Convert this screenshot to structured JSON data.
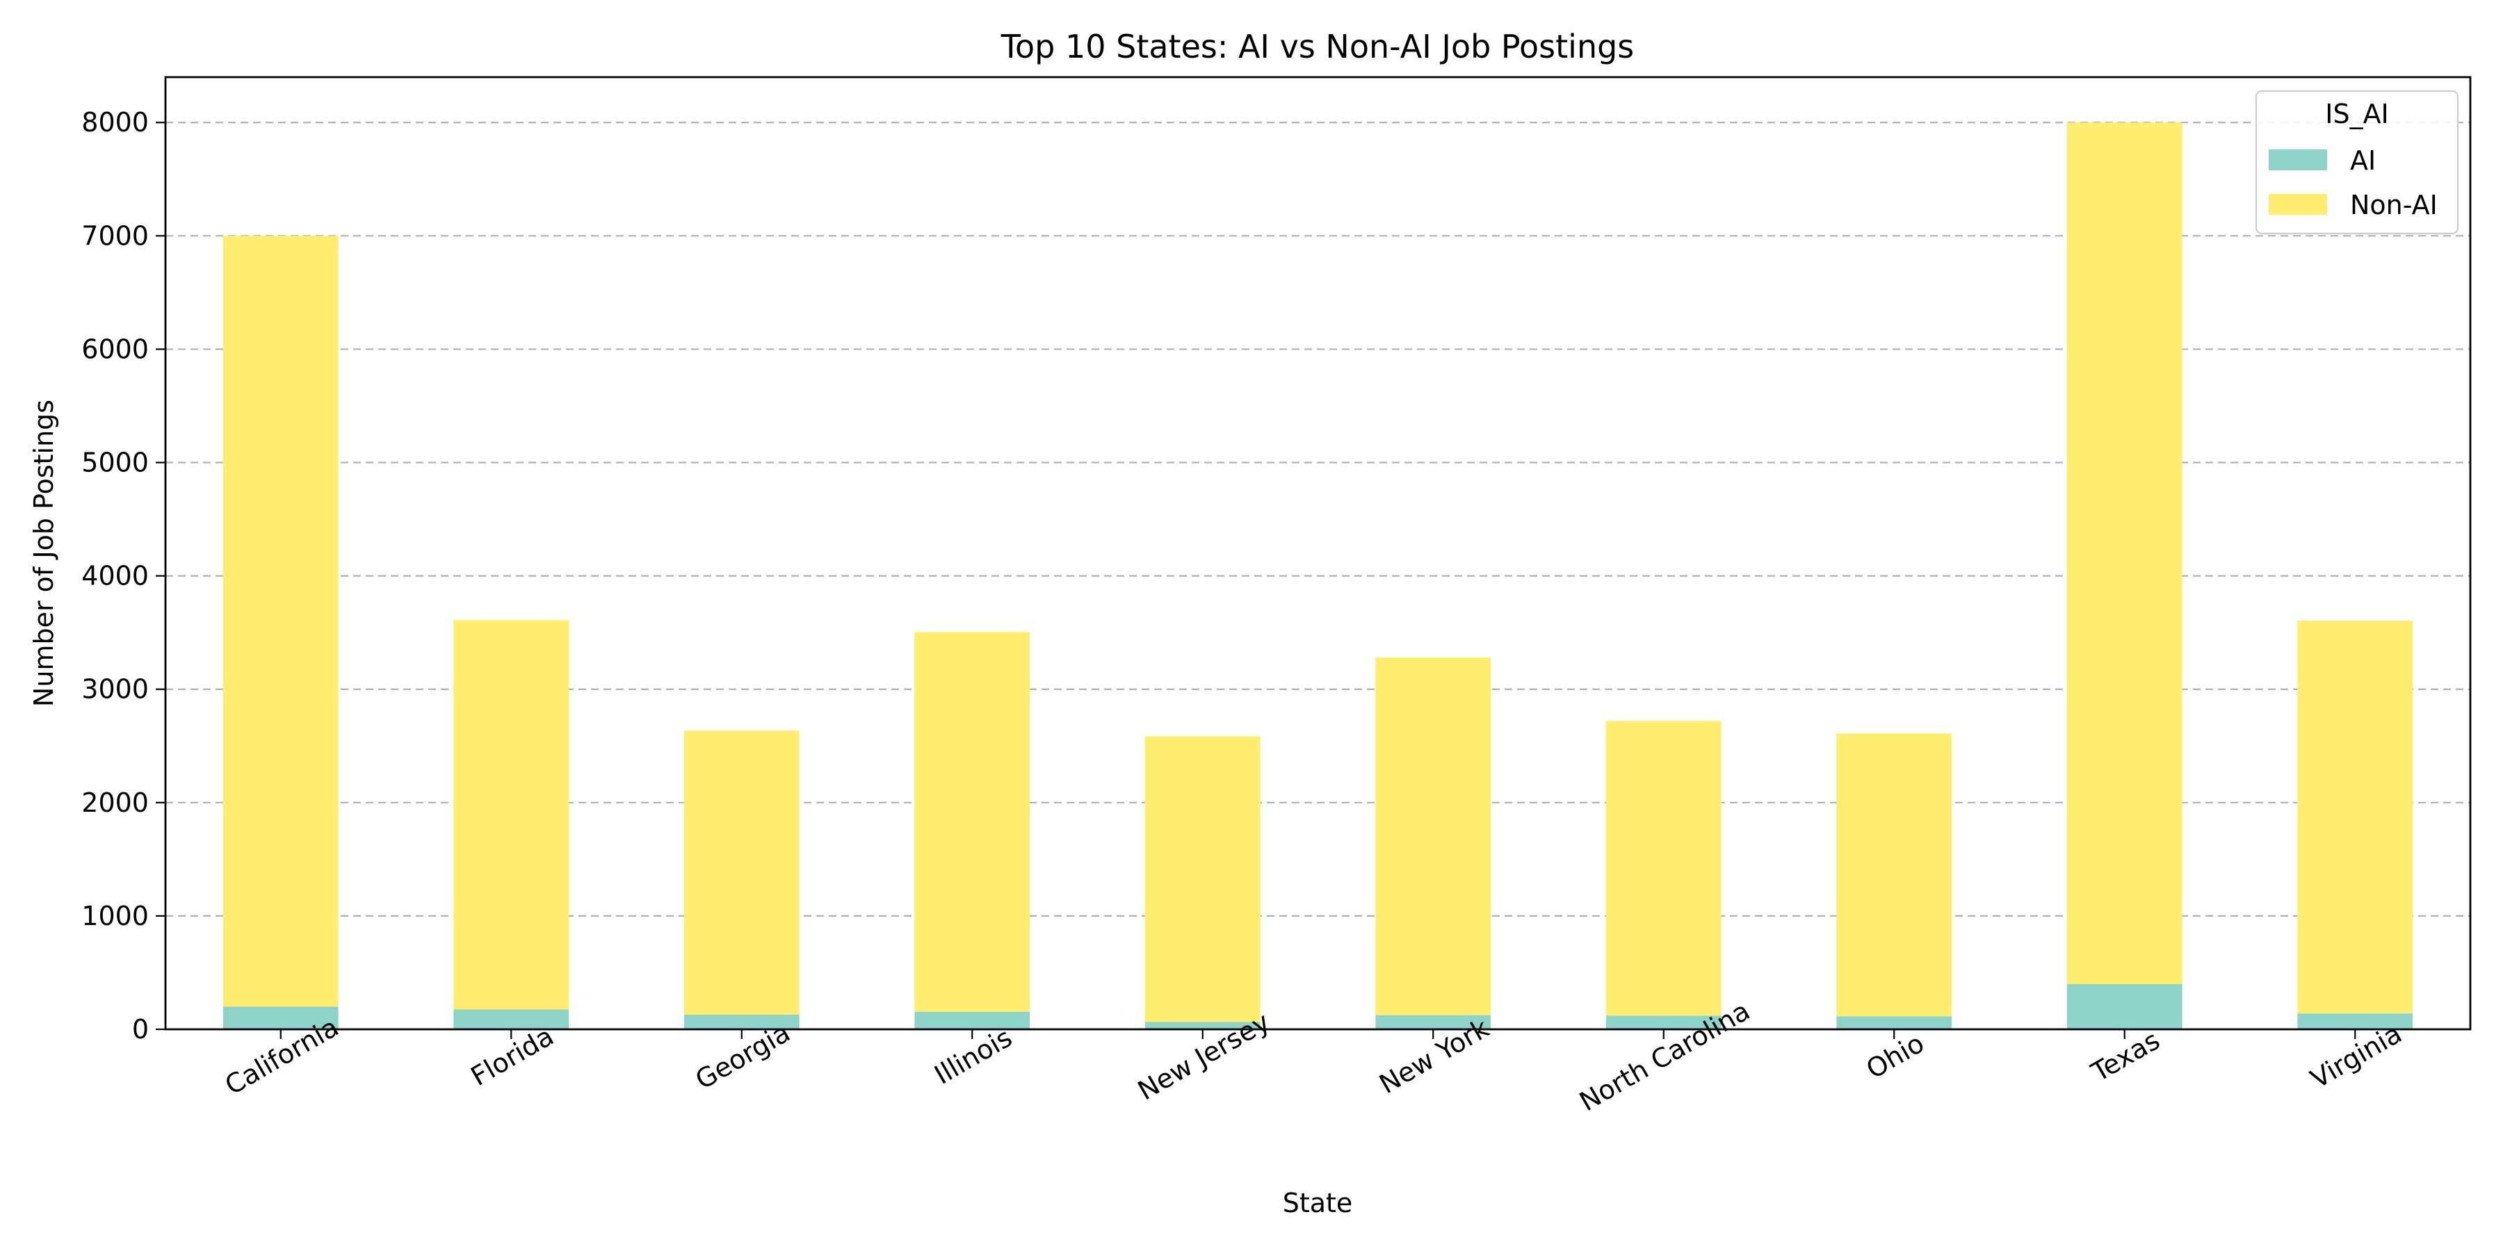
{
  "chart_data": {
    "type": "bar",
    "stacked": true,
    "title": "Top 10 States: AI vs Non-AI Job Postings",
    "xlabel": "State",
    "ylabel": "Number of Job Postings",
    "categories": [
      "California",
      "Florida",
      "Georgia",
      "Illinois",
      "New Jersey",
      "New York",
      "North Carolina",
      "Ohio",
      "Texas",
      "Virginia"
    ],
    "series": [
      {
        "name": "AI",
        "color": "#8dd3c7",
        "values": [
          200,
          175,
          130,
          155,
          65,
          125,
          120,
          115,
          400,
          140
        ]
      },
      {
        "name": "Non-AI",
        "color": "#ffed6f",
        "values": [
          6800,
          3435,
          2505,
          3350,
          2520,
          3155,
          2600,
          2495,
          7600,
          3465
        ]
      }
    ],
    "ylim": [
      0,
      8400
    ],
    "yticks": [
      0,
      1000,
      2000,
      3000,
      4000,
      5000,
      6000,
      7000,
      8000
    ],
    "grid": "y",
    "legend": {
      "title": "IS_AI",
      "position": "top-right"
    }
  }
}
